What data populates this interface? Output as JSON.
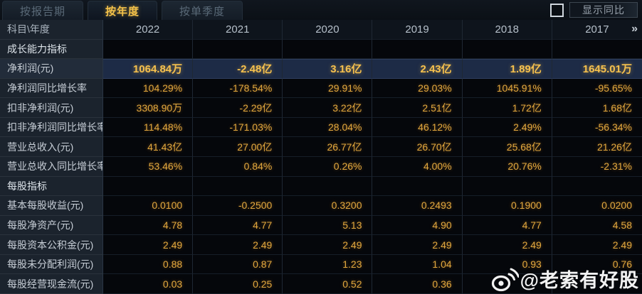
{
  "tabs": [
    {
      "label": "按报告期",
      "active": false
    },
    {
      "label": "按年度",
      "active": true
    },
    {
      "label": "按单季度",
      "active": false
    }
  ],
  "toolbar": {
    "show_yoy_label": "显示同比",
    "checkbox_checked": false
  },
  "table": {
    "corner_label": "科目\\年度",
    "years": [
      "2022",
      "2021",
      "2020",
      "2019",
      "2018",
      "2017"
    ],
    "more_label": "»",
    "rows": [
      {
        "type": "section",
        "label": "成长能力指标",
        "values": [
          "",
          "",
          "",
          "",
          "",
          ""
        ]
      },
      {
        "type": "highlight",
        "label": "净利润(元)",
        "values": [
          "1064.84万",
          "-2.48亿",
          "3.16亿",
          "2.43亿",
          "1.89亿",
          "1645.01万"
        ]
      },
      {
        "type": "data",
        "label": "净利润同比增长率",
        "values": [
          "104.29%",
          "-178.54%",
          "29.91%",
          "29.03%",
          "1045.91%",
          "-95.65%"
        ]
      },
      {
        "type": "data",
        "label": "扣非净利润(元)",
        "values": [
          "3308.90万",
          "-2.29亿",
          "3.22亿",
          "2.51亿",
          "1.72亿",
          "1.68亿"
        ]
      },
      {
        "type": "data",
        "label": "扣非净利润同比增长率",
        "values": [
          "114.48%",
          "-171.03%",
          "28.04%",
          "46.12%",
          "2.49%",
          "-56.34%"
        ]
      },
      {
        "type": "data",
        "label": "营业总收入(元)",
        "values": [
          "41.43亿",
          "27.00亿",
          "26.77亿",
          "26.70亿",
          "25.68亿",
          "21.26亿"
        ]
      },
      {
        "type": "data",
        "label": "营业总收入同比增长率",
        "values": [
          "53.46%",
          "0.84%",
          "0.26%",
          "4.00%",
          "20.76%",
          "-2.31%"
        ]
      },
      {
        "type": "section",
        "label": "每股指标",
        "values": [
          "",
          "",
          "",
          "",
          "",
          ""
        ]
      },
      {
        "type": "data",
        "label": "基本每股收益(元)",
        "values": [
          "0.0100",
          "-0.2500",
          "0.3200",
          "0.2493",
          "0.1900",
          "0.0200"
        ]
      },
      {
        "type": "data",
        "label": "每股净资产(元)",
        "values": [
          "4.78",
          "4.77",
          "5.13",
          "4.90",
          "4.77",
          "4.58"
        ]
      },
      {
        "type": "data",
        "label": "每股资本公积金(元)",
        "values": [
          "2.49",
          "2.49",
          "2.49",
          "2.49",
          "2.49",
          "2.49"
        ]
      },
      {
        "type": "data",
        "label": "每股未分配利润(元)",
        "values": [
          "0.88",
          "0.87",
          "1.23",
          "1.04",
          "0.93",
          "0.76"
        ]
      },
      {
        "type": "data",
        "label": "每股经营现金流(元)",
        "values": [
          "0.03",
          "0.25",
          "0.52",
          "0.36",
          "",
          ""
        ]
      }
    ]
  },
  "watermark": {
    "handle": "@老索有好股",
    "logo": "weibo-icon"
  },
  "colors": {
    "page_bg": "#0a0e13",
    "accent_gold": "#f4c24a",
    "value_gold": "#e2a83e",
    "highlight_row_bg": "#1d2b46",
    "label_col_bg": "#1b232d",
    "inactive_tab_text": "#5a6a78"
  }
}
